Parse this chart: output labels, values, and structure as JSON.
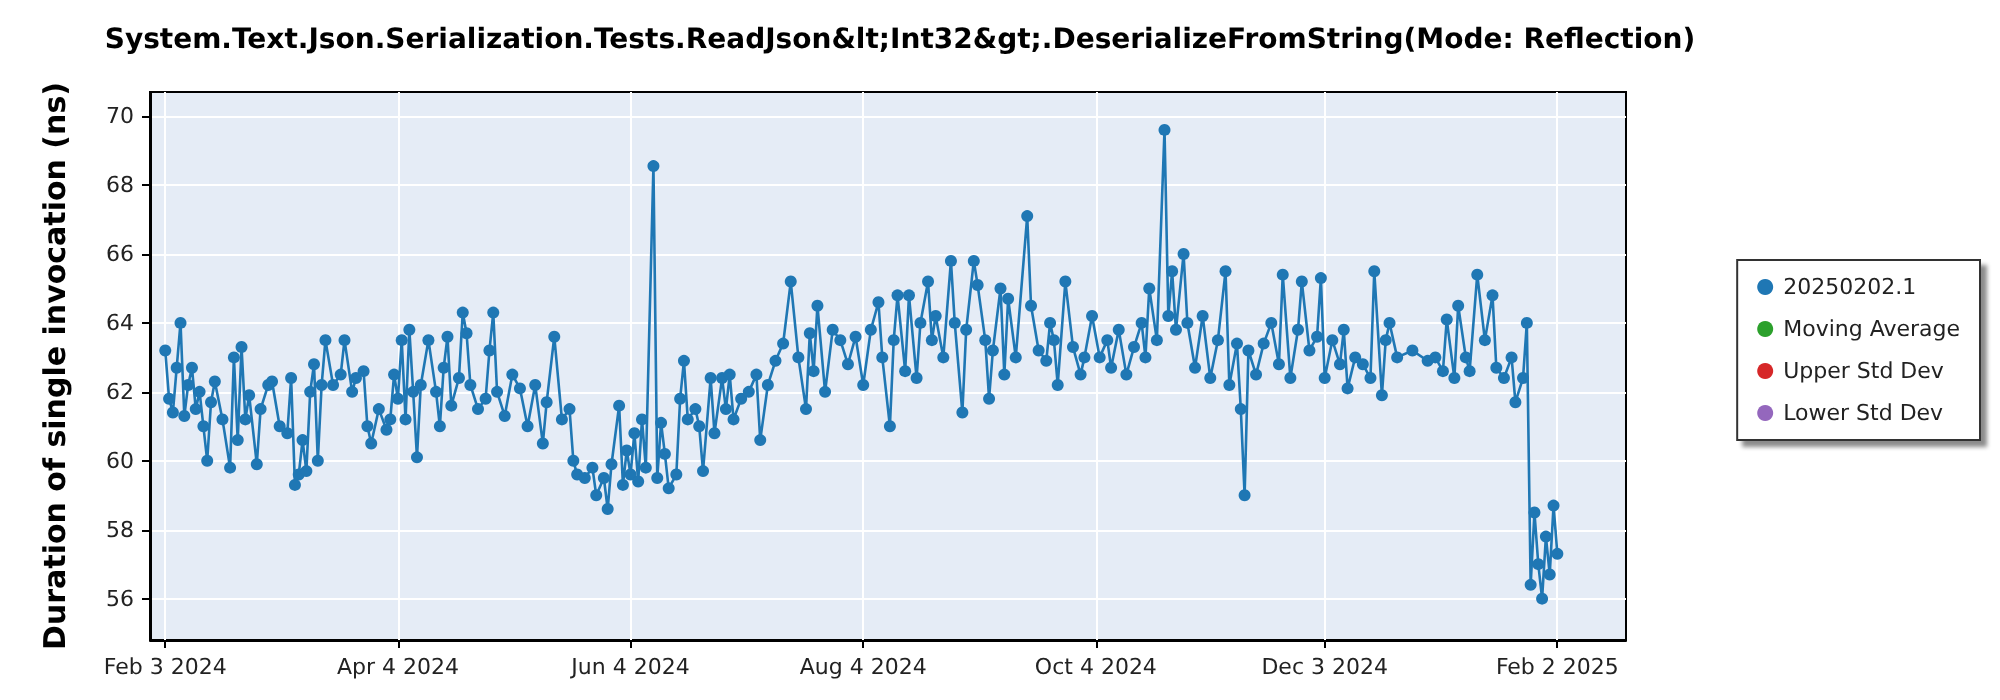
{
  "chart_data": {
    "type": "line",
    "title": "System.Text.Json.Serialization.Tests.ReadJson&lt;Int32&gt;.DeserializeFromString(Mode: Reflection)",
    "ylabel": "Duration of single invocation (ns)",
    "xlim": [
      "2024-01-30",
      "2025-02-20"
    ],
    "xticks": [
      {
        "value": "2024-02-03",
        "label": "Feb 3 2024"
      },
      {
        "value": "2024-04-04",
        "label": "Apr 4 2024"
      },
      {
        "value": "2024-06-04",
        "label": "Jun 4 2024"
      },
      {
        "value": "2024-08-04",
        "label": "Aug 4 2024"
      },
      {
        "value": "2024-10-04",
        "label": "Oct 4 2024"
      },
      {
        "value": "2024-12-03",
        "label": "Dec 3 2024"
      },
      {
        "value": "2025-02-02",
        "label": "Feb 2 2025"
      }
    ],
    "ylim": [
      54.8,
      70.7
    ],
    "yticks": [
      56,
      58,
      60,
      62,
      64,
      66,
      68,
      70
    ],
    "grid": true,
    "legend": "right",
    "marker": "circle",
    "line_style": "solid",
    "series": [
      {
        "name": "20250202.1",
        "color": "#1f77b4",
        "x": [
          "2024-02-03",
          "2024-02-04",
          "2024-02-05",
          "2024-02-06",
          "2024-02-07",
          "2024-02-08",
          "2024-02-09",
          "2024-02-10",
          "2024-02-11",
          "2024-02-12",
          "2024-02-13",
          "2024-02-14",
          "2024-02-15",
          "2024-02-16",
          "2024-02-18",
          "2024-02-20",
          "2024-02-21",
          "2024-02-22",
          "2024-02-23",
          "2024-02-24",
          "2024-02-25",
          "2024-02-27",
          "2024-02-28",
          "2024-03-01",
          "2024-03-02",
          "2024-03-04",
          "2024-03-06",
          "2024-03-07",
          "2024-03-08",
          "2024-03-09",
          "2024-03-10",
          "2024-03-11",
          "2024-03-12",
          "2024-03-13",
          "2024-03-14",
          "2024-03-15",
          "2024-03-16",
          "2024-03-18",
          "2024-03-20",
          "2024-03-21",
          "2024-03-23",
          "2024-03-24",
          "2024-03-26",
          "2024-03-27",
          "2024-03-28",
          "2024-03-30",
          "2024-04-01",
          "2024-04-02",
          "2024-04-03",
          "2024-04-04",
          "2024-04-05",
          "2024-04-06",
          "2024-04-07",
          "2024-04-08",
          "2024-04-09",
          "2024-04-10",
          "2024-04-12",
          "2024-04-14",
          "2024-04-15",
          "2024-04-16",
          "2024-04-17",
          "2024-04-18",
          "2024-04-20",
          "2024-04-21",
          "2024-04-22",
          "2024-04-23",
          "2024-04-25",
          "2024-04-27",
          "2024-04-28",
          "2024-04-29",
          "2024-04-30",
          "2024-05-02",
          "2024-05-04",
          "2024-05-06",
          "2024-05-08",
          "2024-05-10",
          "2024-05-12",
          "2024-05-13",
          "2024-05-15",
          "2024-05-17",
          "2024-05-19",
          "2024-05-20",
          "2024-05-21",
          "2024-05-23",
          "2024-05-25",
          "2024-05-26",
          "2024-05-28",
          "2024-05-29",
          "2024-05-30",
          "2024-06-01",
          "2024-06-02",
          "2024-06-03",
          "2024-06-04",
          "2024-06-05",
          "2024-06-06",
          "2024-06-07",
          "2024-06-08",
          "2024-06-10",
          "2024-06-11",
          "2024-06-12",
          "2024-06-13",
          "2024-06-14",
          "2024-06-16",
          "2024-06-17",
          "2024-06-18",
          "2024-06-19",
          "2024-06-21",
          "2024-06-22",
          "2024-06-23",
          "2024-06-25",
          "2024-06-26",
          "2024-06-28",
          "2024-06-29",
          "2024-06-30",
          "2024-07-01",
          "2024-07-03",
          "2024-07-05",
          "2024-07-07",
          "2024-07-08",
          "2024-07-10",
          "2024-07-12",
          "2024-07-14",
          "2024-07-16",
          "2024-07-18",
          "2024-07-20",
          "2024-07-21",
          "2024-07-22",
          "2024-07-23",
          "2024-07-25",
          "2024-07-27",
          "2024-07-29",
          "2024-07-31",
          "2024-08-02",
          "2024-08-04",
          "2024-08-06",
          "2024-08-08",
          "2024-08-09",
          "2024-08-11",
          "2024-08-12",
          "2024-08-13",
          "2024-08-15",
          "2024-08-16",
          "2024-08-18",
          "2024-08-19",
          "2024-08-21",
          "2024-08-22",
          "2024-08-23",
          "2024-08-25",
          "2024-08-27",
          "2024-08-28",
          "2024-08-30",
          "2024-08-31",
          "2024-09-02",
          "2024-09-03",
          "2024-09-05",
          "2024-09-06",
          "2024-09-07",
          "2024-09-09",
          "2024-09-10",
          "2024-09-11",
          "2024-09-13",
          "2024-09-16",
          "2024-09-17",
          "2024-09-19",
          "2024-09-21",
          "2024-09-22",
          "2024-09-23",
          "2024-09-24",
          "2024-09-26",
          "2024-09-28",
          "2024-09-30",
          "2024-10-01",
          "2024-10-03",
          "2024-10-05",
          "2024-10-07",
          "2024-10-08",
          "2024-10-10",
          "2024-10-12",
          "2024-10-14",
          "2024-10-16",
          "2024-10-17",
          "2024-10-18",
          "2024-10-20",
          "2024-10-22",
          "2024-10-23",
          "2024-10-24",
          "2024-10-25",
          "2024-10-27",
          "2024-10-28",
          "2024-10-30",
          "2024-11-01",
          "2024-11-03",
          "2024-11-05",
          "2024-11-07",
          "2024-11-08",
          "2024-11-10",
          "2024-11-11",
          "2024-11-12",
          "2024-11-13",
          "2024-11-15",
          "2024-11-17",
          "2024-11-19",
          "2024-11-21",
          "2024-11-22",
          "2024-11-24",
          "2024-11-26",
          "2024-11-27",
          "2024-11-29",
          "2024-12-01",
          "2024-12-02",
          "2024-12-03",
          "2024-12-05",
          "2024-12-07",
          "2024-12-08",
          "2024-12-09",
          "2024-12-11",
          "2024-12-13",
          "2024-12-15",
          "2024-12-16",
          "2024-12-18",
          "2024-12-19",
          "2024-12-20",
          "2024-12-22",
          "2024-12-26",
          "2024-12-30",
          "2025-01-01",
          "2025-01-03",
          "2025-01-04",
          "2025-01-06",
          "2025-01-07",
          "2025-01-09",
          "2025-01-10",
          "2025-01-12",
          "2025-01-14",
          "2025-01-16",
          "2025-01-17",
          "2025-01-19",
          "2025-01-21",
          "2025-01-22",
          "2025-01-24",
          "2025-01-25",
          "2025-01-26",
          "2025-01-27",
          "2025-01-28",
          "2025-01-29",
          "2025-01-30",
          "2025-01-31",
          "2025-02-01",
          "2025-02-02"
        ],
        "values": [
          63.2,
          61.8,
          61.4,
          62.7,
          64.0,
          61.3,
          62.2,
          62.7,
          61.5,
          62.0,
          61.0,
          60.0,
          61.7,
          62.3,
          61.2,
          59.8,
          63.0,
          60.6,
          63.3,
          61.2,
          61.9,
          59.9,
          61.5,
          62.2,
          62.3,
          61.0,
          60.8,
          62.4,
          59.3,
          59.6,
          60.6,
          59.7,
          62.0,
          62.8,
          60.0,
          62.2,
          63.5,
          62.2,
          62.5,
          63.5,
          62.0,
          62.4,
          62.6,
          61.0,
          60.5,
          61.5,
          60.9,
          61.2,
          62.5,
          61.8,
          63.5,
          61.2,
          63.8,
          62.0,
          60.1,
          62.2,
          63.5,
          62.0,
          61.0,
          62.7,
          63.6,
          61.6,
          62.4,
          64.3,
          63.7,
          62.2,
          61.5,
          61.8,
          63.2,
          64.3,
          62.0,
          61.3,
          62.5,
          62.1,
          61.0,
          62.2,
          60.5,
          61.7,
          63.6,
          61.2,
          61.5,
          60.0,
          59.6,
          59.5,
          59.8,
          59.0,
          59.5,
          58.6,
          59.9,
          61.6,
          59.3,
          60.3,
          59.6,
          60.8,
          59.4,
          61.2,
          59.8,
          68.55,
          59.5,
          61.1,
          60.2,
          59.2,
          59.6,
          61.8,
          62.9,
          61.2,
          61.5,
          61.0,
          59.7,
          62.4,
          60.8,
          62.4,
          61.5,
          62.5,
          61.2,
          61.8,
          62.0,
          62.5,
          60.6,
          62.2,
          62.9,
          63.4,
          65.2,
          63.0,
          61.5,
          63.7,
          62.6,
          64.5,
          62.0,
          63.8,
          63.5,
          62.8,
          63.6,
          62.2,
          63.8,
          64.6,
          63.0,
          61.0,
          63.5,
          64.8,
          62.6,
          64.8,
          62.4,
          64.0,
          65.2,
          63.5,
          64.2,
          63.0,
          65.8,
          64.0,
          61.4,
          63.8,
          65.8,
          65.1,
          63.5,
          61.8,
          63.2,
          65.0,
          62.5,
          64.7,
          63.0,
          67.1,
          64.5,
          63.2,
          62.9,
          64.0,
          63.5,
          62.2,
          65.2,
          63.3,
          62.5,
          63.0,
          64.2,
          63.0,
          63.5,
          62.7,
          63.8,
          62.5,
          63.3,
          64.0,
          63.0,
          65.0,
          63.5,
          69.6,
          64.2,
          65.5,
          63.8,
          66.0,
          64.0,
          62.7,
          64.2,
          62.4,
          63.5,
          65.5,
          62.2,
          63.4,
          61.5,
          59.0,
          63.2,
          62.5,
          63.4,
          64.0,
          62.8,
          65.4,
          62.4,
          63.8,
          65.2,
          63.2,
          63.6,
          65.3,
          62.4,
          63.5,
          62.8,
          63.8,
          62.1,
          63.0,
          62.8,
          62.4,
          65.5,
          61.9,
          63.5,
          64.0,
          63.0,
          63.2,
          62.9,
          63.0,
          62.6,
          64.1,
          62.4,
          64.5,
          63.0,
          62.6,
          65.4,
          63.5,
          64.8,
          62.7,
          62.4,
          63.0,
          61.7,
          62.4,
          64.0,
          56.4,
          58.5,
          57.0,
          56.0,
          57.8,
          56.7,
          58.7,
          57.3
        ]
      },
      {
        "name": "Moving Average",
        "color": "#2ca02c"
      },
      {
        "name": "Upper Std Dev",
        "color": "#d62728"
      },
      {
        "name": "Lower Std Dev",
        "color": "#9467bd"
      }
    ]
  }
}
